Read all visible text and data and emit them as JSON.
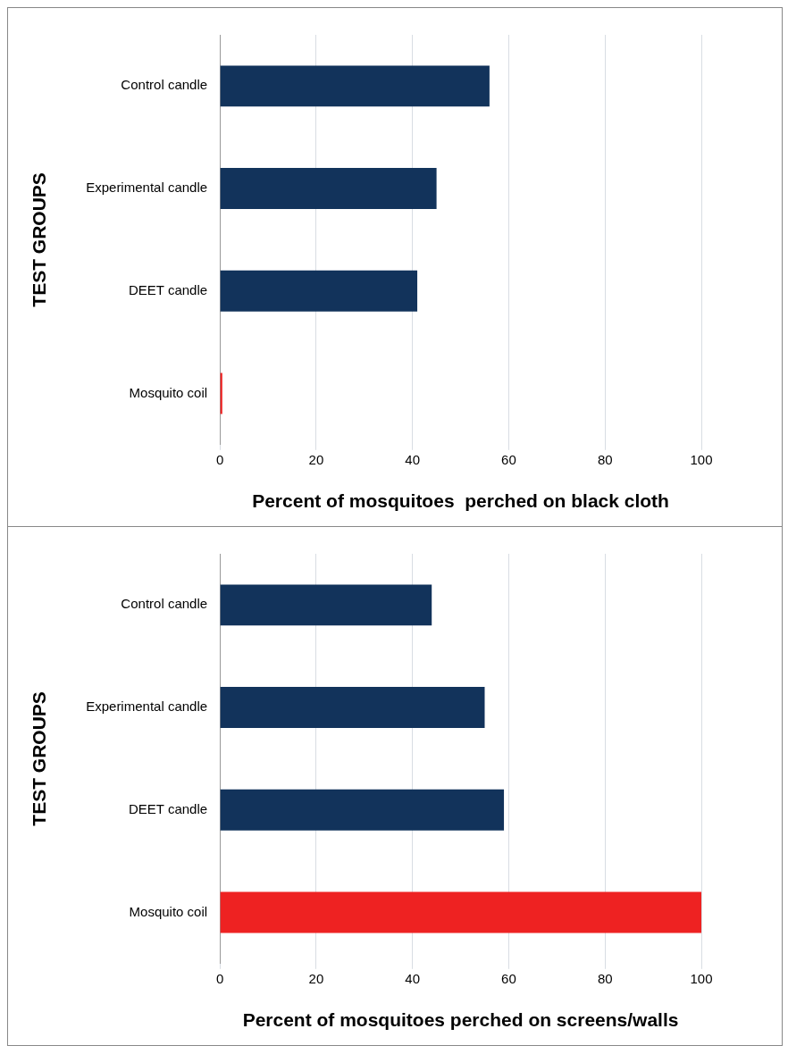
{
  "chart_data": [
    {
      "type": "bar",
      "orientation": "horizontal",
      "categories": [
        "Control candle",
        "Experimental candle",
        "DEET candle",
        "Mosquito coil"
      ],
      "values": [
        56,
        45,
        41,
        0.5
      ],
      "colors": [
        "#12335b",
        "#12335b",
        "#12335b",
        "#ee2222"
      ],
      "xlim": [
        0,
        100
      ],
      "xticks": [
        0,
        20,
        40,
        60,
        80,
        100
      ],
      "xlabel": "Percent of mosquitoes  perched on black cloth",
      "ylabel": "TEST GROUPS",
      "grid": "x",
      "legend": false
    },
    {
      "type": "bar",
      "orientation": "horizontal",
      "categories": [
        "Control candle",
        "Experimental candle",
        "DEET candle",
        "Mosquito coil"
      ],
      "values": [
        44,
        55,
        59,
        100
      ],
      "colors": [
        "#12335b",
        "#12335b",
        "#12335b",
        "#ee2222"
      ],
      "xlim": [
        0,
        100
      ],
      "xticks": [
        0,
        20,
        40,
        60,
        80,
        100
      ],
      "xlabel": "Percent of mosquitoes perched on screens/walls",
      "ylabel": "TEST GROUPS",
      "grid": "x",
      "legend": false
    }
  ]
}
